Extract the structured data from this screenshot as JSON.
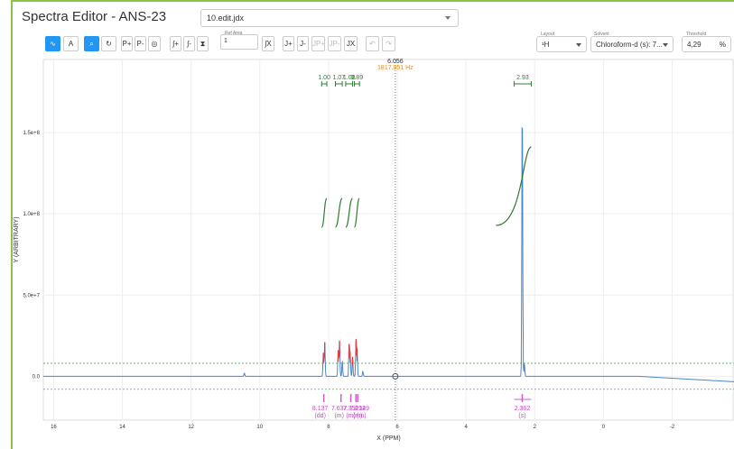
{
  "header": {
    "title": "Spectra Editor - ANS-23",
    "file": "10.edit.jdx"
  },
  "toolbar": {
    "ref_area_label": "Ref Area",
    "ref_area_value": "1",
    "buttons": [
      "P+",
      "P-",
      "∫+",
      "∫-",
      "∫X",
      "J+",
      "J-",
      "JP+",
      "JP-",
      "JX"
    ],
    "layout_label": "Layout",
    "layout_value": "¹H",
    "solvent_label": "Solvent",
    "solvent_value": "Chloroform-d (s): 7...",
    "threshold_label": "Threshold",
    "threshold_value": "4,29",
    "threshold_unit": "%"
  },
  "cursor": {
    "ppm": "6.056",
    "hz": "1817.951 Hz"
  },
  "chart_data": {
    "type": "line",
    "xlabel": "X (PPM)",
    "ylabel": "Y (ARBITRARY)",
    "xlim": [
      16.3,
      -3.8
    ],
    "ylim": [
      -27000000.0,
      195000000.0
    ],
    "x_ticks": [
      "16",
      "14",
      "12",
      "10",
      "8",
      "6",
      "4",
      "2",
      "0",
      "-2"
    ],
    "y_ticks": [
      "0.0",
      "5.0e+7",
      "1.0e+8",
      "1.5e+8"
    ],
    "threshold_lines": [
      8000000.0,
      -8000000.0
    ],
    "peaks": [
      {
        "x": 10.45,
        "y": 2000000.0
      },
      {
        "x": 8.15,
        "y": 14500000.0
      },
      {
        "x": 8.11,
        "y": 21000000.0
      },
      {
        "x": 7.72,
        "y": 16000000.0
      },
      {
        "x": 7.68,
        "y": 22000000.0
      },
      {
        "x": 7.6,
        "y": 10000000.0
      },
      {
        "x": 7.4,
        "y": 20000000.0
      },
      {
        "x": 7.37,
        "y": 15000000.0
      },
      {
        "x": 7.3,
        "y": 12000000.0
      },
      {
        "x": 7.2,
        "y": 23000000.0
      },
      {
        "x": 7.17,
        "y": 17000000.0
      },
      {
        "x": 7.0,
        "y": 3000000.0
      },
      {
        "x": 2.362,
        "y": 175000000.0
      },
      {
        "x": 2.3,
        "y": 8000000.0
      }
    ],
    "integrals": [
      {
        "label": "1.00",
        "from": 8.2,
        "to": 8.05
      },
      {
        "label": "1.07",
        "from": 7.8,
        "to": 7.6
      },
      {
        "label": "1.08",
        "from": 7.5,
        "to": 7.3
      },
      {
        "label": "0.89",
        "from": 7.25,
        "to": 7.1
      },
      {
        "label": "2.93",
        "from": 2.6,
        "to": 2.1
      }
    ],
    "multiplets": [
      {
        "shift": "8.137",
        "type": "(dd)"
      },
      {
        "shift": "7.637",
        "type": "(m)"
      },
      {
        "shift": "7.351",
        "type": "(m)"
      },
      {
        "shift": "7.202",
        "type": "(m)"
      },
      {
        "shift": "7.149",
        "type": "(m)"
      },
      {
        "shift": "2.362",
        "type": "(s)"
      }
    ]
  }
}
